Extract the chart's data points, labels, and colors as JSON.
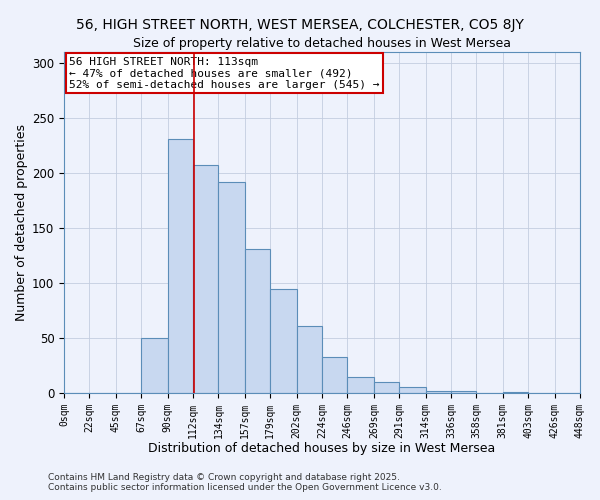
{
  "title": "56, HIGH STREET NORTH, WEST MERSEA, COLCHESTER, CO5 8JY",
  "subtitle": "Size of property relative to detached houses in West Mersea",
  "xlabel": "Distribution of detached houses by size in West Mersea",
  "ylabel": "Number of detached properties",
  "bar_color": "#c8d8f0",
  "bar_edge_color": "#5b8db8",
  "bg_color": "#eef2fc",
  "grid_color": "#c4cde0",
  "vline_x": 113,
  "vline_color": "#cc0000",
  "bin_edges": [
    0,
    22,
    45,
    67,
    90,
    112,
    134,
    157,
    179,
    202,
    224,
    246,
    269,
    291,
    314,
    336,
    358,
    381,
    403,
    426,
    448
  ],
  "bin_labels": [
    "0sqm",
    "22sqm",
    "45sqm",
    "67sqm",
    "90sqm",
    "112sqm",
    "134sqm",
    "157sqm",
    "179sqm",
    "202sqm",
    "224sqm",
    "246sqm",
    "269sqm",
    "291sqm",
    "314sqm",
    "336sqm",
    "358sqm",
    "381sqm",
    "403sqm",
    "426sqm",
    "448sqm"
  ],
  "counts": [
    0,
    0,
    0,
    50,
    231,
    207,
    192,
    131,
    94,
    61,
    33,
    14,
    10,
    5,
    2,
    2,
    0,
    1,
    0,
    0
  ],
  "annotation_title": "56 HIGH STREET NORTH: 113sqm",
  "annotation_line1": "← 47% of detached houses are smaller (492)",
  "annotation_line2": "52% of semi-detached houses are larger (545) →",
  "annotation_box_color": "#ffffff",
  "annotation_border_color": "#cc0000",
  "ylim": [
    0,
    310
  ],
  "yticks": [
    0,
    50,
    100,
    150,
    200,
    250,
    300
  ],
  "footer1": "Contains HM Land Registry data © Crown copyright and database right 2025.",
  "footer2": "Contains public sector information licensed under the Open Government Licence v3.0."
}
